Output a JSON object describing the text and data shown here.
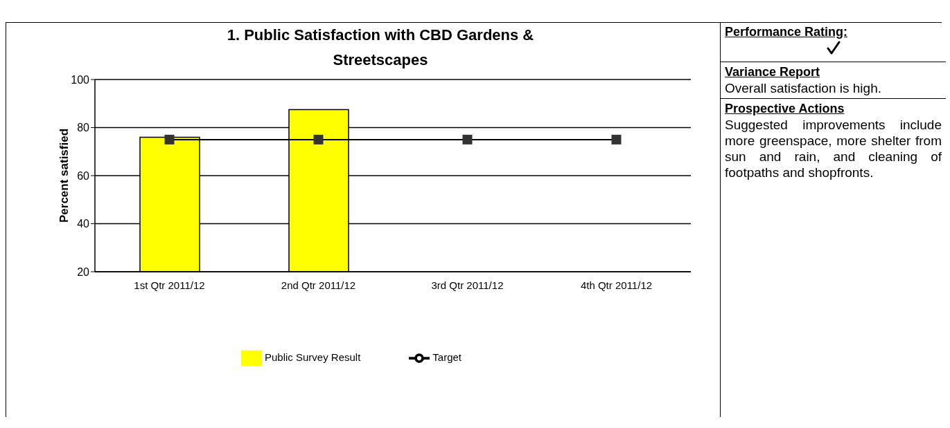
{
  "chart_data": {
    "type": "bar",
    "title": "1. Public Satisfaction with CBD Gardens & Streetscapes",
    "ylabel": "Percent satisfied",
    "categories": [
      "1st Qtr 2011/12",
      "2nd Qtr 2011/12",
      "3rd Qtr 2011/12",
      "4th Qtr 2011/12"
    ],
    "series": [
      {
        "name": "Public Survey Result",
        "color": "#ffff00",
        "values": [
          76,
          87.5,
          null,
          null
        ]
      },
      {
        "name": "Target",
        "type": "line",
        "color": "#333333",
        "values": [
          75,
          75,
          75,
          75
        ],
        "marker": "square",
        "line_style": "solid"
      }
    ],
    "ylim": [
      20,
      100
    ],
    "yticks": [
      20,
      40,
      60,
      80,
      100
    ],
    "grid": "y",
    "legend": "bottom",
    "annotations": [
      "Performance Rating:",
      "Variance Report",
      "Overall satisfaction is high.",
      "Prospective Actions",
      "Suggested improvements include more greenspace, more shelter from sun and rain, and cleaning of footpaths and shopfronts."
    ]
  }
}
